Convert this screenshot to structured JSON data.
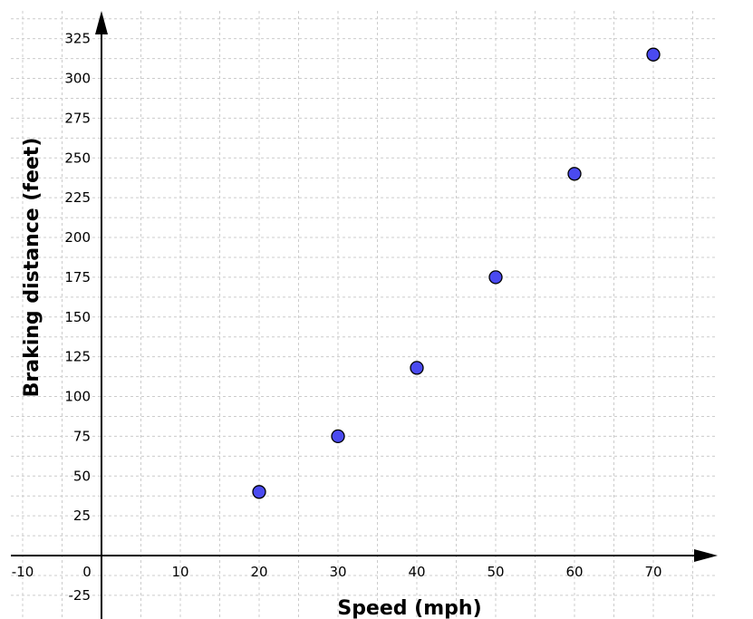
{
  "chart_data": {
    "type": "scatter",
    "title": "",
    "xlabel": "Speed (mph)",
    "ylabel": "Braking distance (feet)",
    "xlim": [
      -12,
      78
    ],
    "ylim": [
      -40,
      340
    ],
    "grid": true,
    "x_ticks": [
      -10,
      0,
      10,
      20,
      30,
      40,
      50,
      60,
      70
    ],
    "y_ticks": [
      -25,
      25,
      50,
      75,
      100,
      125,
      150,
      175,
      200,
      225,
      250,
      275,
      300,
      325
    ],
    "series": [
      {
        "x": [
          20,
          30,
          40,
          50,
          60,
          70
        ],
        "y": [
          40,
          75,
          118,
          175,
          240,
          315
        ]
      }
    ],
    "marker_color": "#4a4af0",
    "marker_edge_color": "#000000",
    "axis_color": "#000000",
    "grid_color": "#cccccc"
  }
}
